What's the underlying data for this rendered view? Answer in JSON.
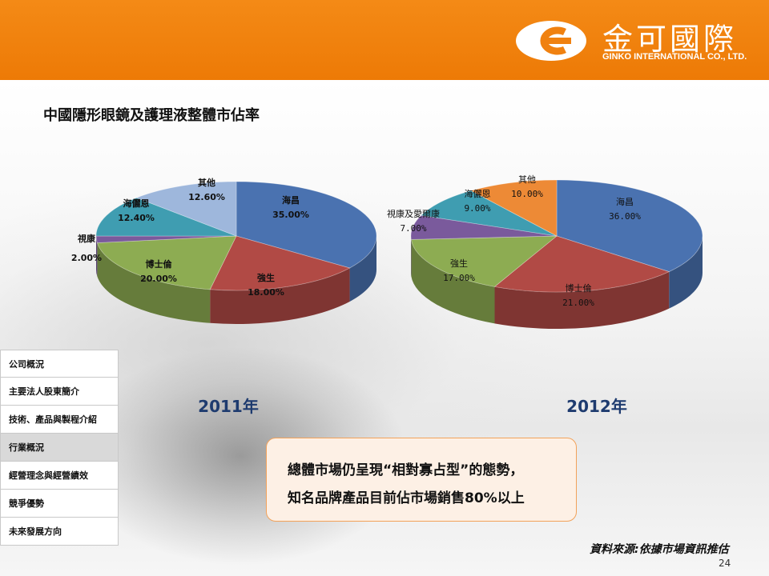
{
  "header": {
    "logo_cn": "金可國際",
    "logo_en": "GINKO INTERNATIONAL CO., LTD."
  },
  "title": "中國隱形眼鏡及護理液整體市佔率",
  "colors": {
    "blue": "#4a72b0",
    "red": "#b14a45",
    "green": "#8dac52",
    "purple": "#7a5a9c",
    "teal": "#3f9db1",
    "lightblue": "#9eb7dc",
    "orange": "#ed8a36",
    "header": "#f08110"
  },
  "chart_data": [
    {
      "type": "pie",
      "year_label": "2011年",
      "slices": [
        {
          "label": "海昌",
          "value": "35.00%",
          "pct": 35.0,
          "color": "#4a72b0"
        },
        {
          "label": "強生",
          "value": "18.00%",
          "pct": 18.0,
          "color": "#b14a45"
        },
        {
          "label": "博士倫",
          "value": "20.00%",
          "pct": 20.0,
          "color": "#8dac52"
        },
        {
          "label": "視康",
          "value": "2.00%",
          "pct": 2.0,
          "color": "#7a5a9c"
        },
        {
          "label": "海儷恩",
          "value": "12.40%",
          "pct": 12.4,
          "color": "#3f9db1"
        },
        {
          "label": "其他",
          "value": "12.60%",
          "pct": 12.6,
          "color": "#9eb7dc"
        }
      ]
    },
    {
      "type": "pie",
      "year_label": "2012年",
      "slices": [
        {
          "label": "海昌",
          "value": "36.00%",
          "pct": 36.0,
          "color": "#4a72b0"
        },
        {
          "label": "博士倫",
          "value": "21.00%",
          "pct": 21.0,
          "color": "#b14a45"
        },
        {
          "label": "強生",
          "value": "17.00%",
          "pct": 17.0,
          "color": "#8dac52"
        },
        {
          "label": "視康及愛爾康",
          "value": "7.00%",
          "pct": 7.0,
          "color": "#7a5a9c"
        },
        {
          "label": "海儷恩",
          "value": "9.00%",
          "pct": 9.0,
          "color": "#3f9db1"
        },
        {
          "label": "其他",
          "value": "10.00%",
          "pct": 10.0,
          "color": "#ed8a36"
        }
      ]
    }
  ],
  "sidebar": {
    "items": [
      {
        "label": "公司概況",
        "active": false
      },
      {
        "label": "主要法人股東簡介",
        "active": false
      },
      {
        "label": "技術、產品與製程介紹",
        "active": false
      },
      {
        "label": "行業概況",
        "active": true
      },
      {
        "label": "經營理念與經營績效",
        "active": false
      },
      {
        "label": "競爭優勢",
        "active": false
      },
      {
        "label": "未來發展方向",
        "active": false
      }
    ]
  },
  "callout": {
    "line1": "總體市場仍呈現“相對寡占型”的態勢，",
    "line2": "知名品牌產品目前佔市場銷售80%以上"
  },
  "source": "資料來源:依據市場資訊推估",
  "page_number": "24"
}
